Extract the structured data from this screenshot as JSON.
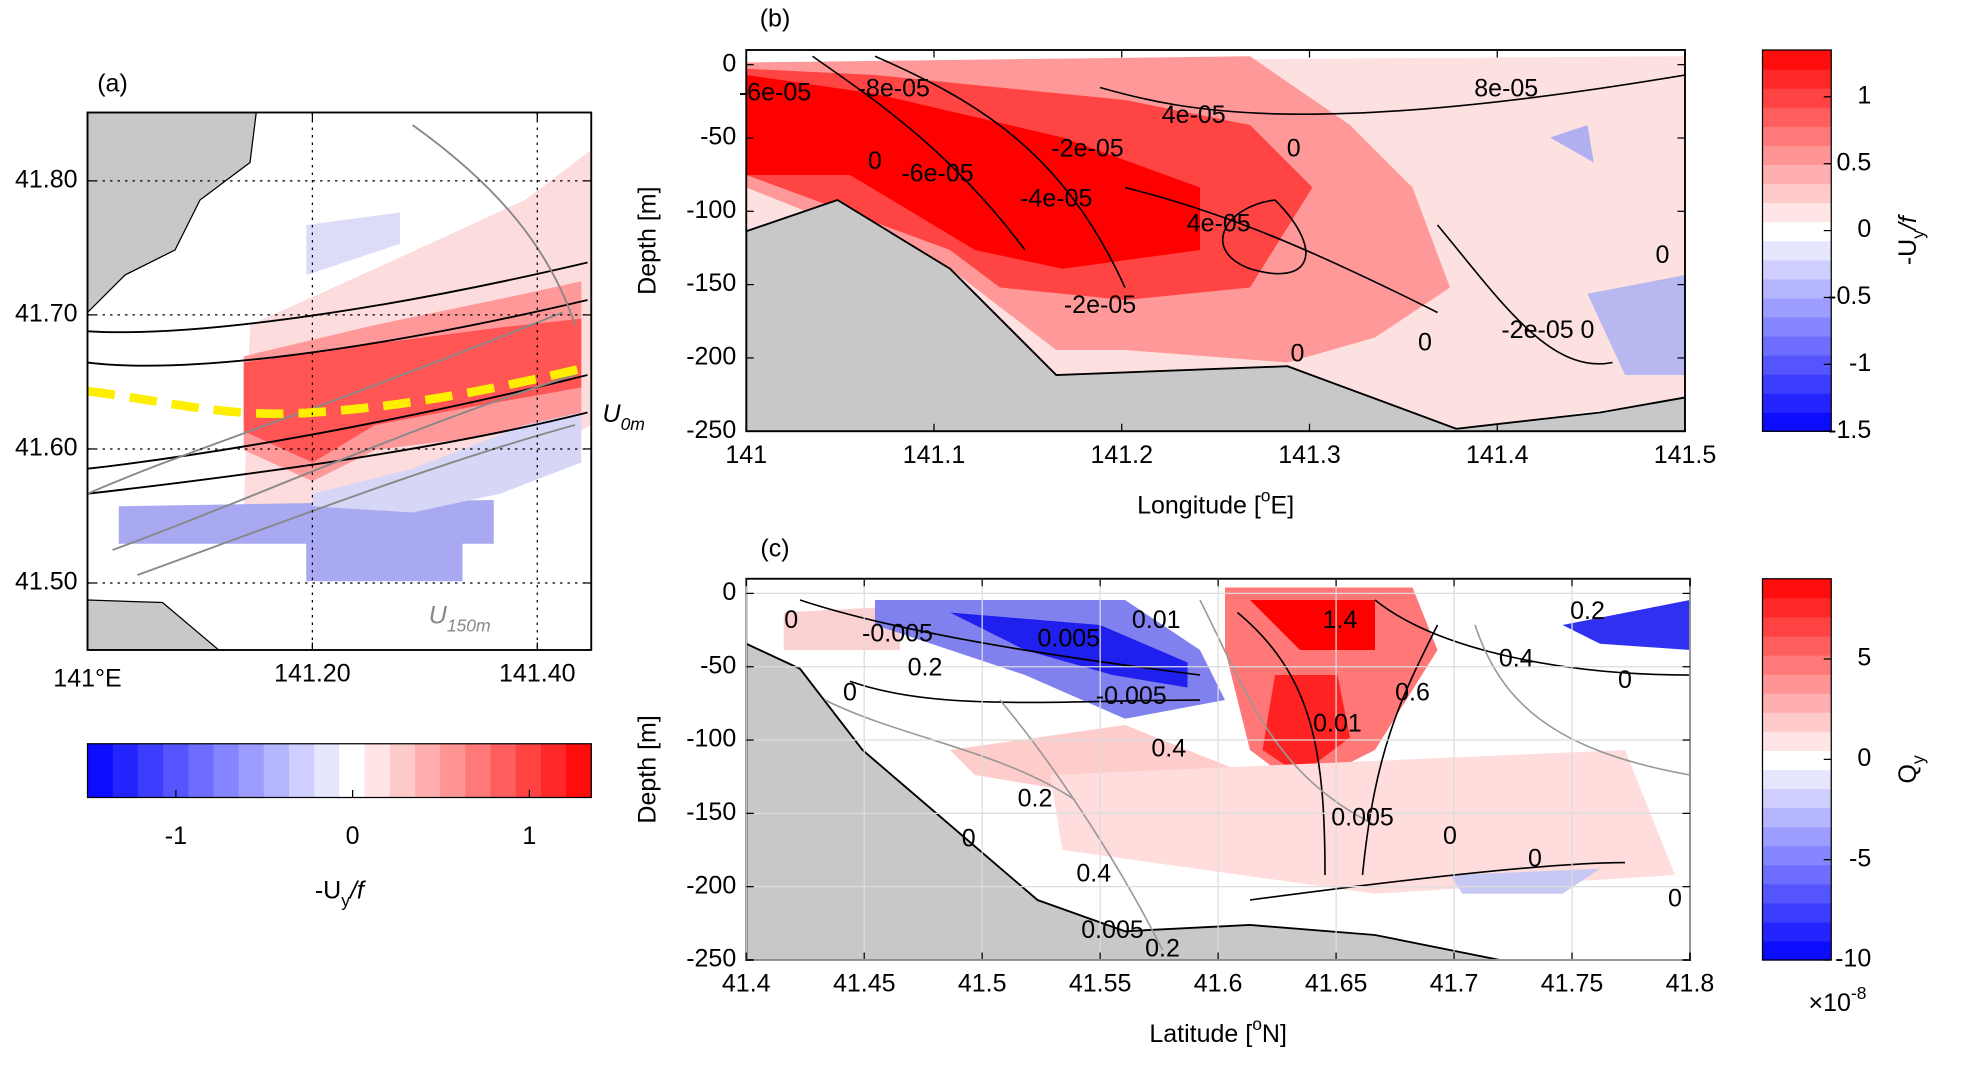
{
  "chart_data": [
    {
      "type": "map",
      "label": "(a)",
      "xlim": [
        141,
        141.448
      ],
      "ylim": [
        41.45,
        41.851
      ],
      "xticks": [
        {
          "value": 141,
          "label": "141°E"
        },
        {
          "value": 141.2,
          "label": "141.20"
        },
        {
          "value": 141.4,
          "label": "141.40"
        }
      ],
      "yticks": [
        {
          "value": 41.5,
          "label": "41.50"
        },
        {
          "value": 41.6,
          "label": "41.60"
        },
        {
          "value": 41.7,
          "label": "41.70"
        },
        {
          "value": 41.8,
          "label": "41.80"
        }
      ],
      "grid": true,
      "annotations": [
        {
          "main": "U",
          "sub": "0m"
        },
        {
          "main": "U",
          "sub": "150m"
        }
      ],
      "colorbar": {
        "orientation": "horizontal",
        "lim": [
          -1.5,
          1.35
        ],
        "ticks": [
          -1,
          0,
          1
        ],
        "label": {
          "pre": "-U",
          "sub": "y",
          "post": "/f"
        }
      }
    },
    {
      "type": "section",
      "label": "(b)",
      "xlim": [
        141,
        141.5
      ],
      "ylim": [
        -250,
        10
      ],
      "xticks": [
        141,
        141.1,
        141.2,
        141.3,
        141.4,
        141.5
      ],
      "yticks": [
        0,
        -50,
        -100,
        -150,
        -200,
        -250
      ],
      "grid": false,
      "xlabel": {
        "pre": "Longitude [",
        "sup": "o",
        "post": "E]"
      },
      "ylabel": "Depth [m]",
      "contour_labels": [
        "-6e-05",
        "-8e-05",
        "4e-05",
        "8e-05",
        "-2e-05",
        "0",
        "0",
        "-6e-05",
        "-4e-05",
        "4e-05",
        "-2e-05",
        "0",
        "0",
        "-2e-05",
        "0",
        "0"
      ],
      "colorbar": {
        "orientation": "vertical",
        "lim": [
          -1.5,
          1.35
        ],
        "ticks": [
          1,
          0.5,
          0,
          -0.5,
          -1,
          -1.5
        ],
        "label": {
          "pre": "-U",
          "sub": "y",
          "post": "/f"
        }
      }
    },
    {
      "type": "section",
      "label": "(c)",
      "xlim": [
        41.4,
        41.8
      ],
      "ylim": [
        -250,
        10
      ],
      "xticks": [
        41.4,
        41.45,
        41.5,
        41.55,
        41.6,
        41.65,
        41.7,
        41.75,
        41.8
      ],
      "yticks": [
        0,
        -50,
        -100,
        -150,
        -200,
        -250
      ],
      "grid": true,
      "xlabel": {
        "pre": "Latitude [",
        "sup": "o",
        "post": "N]"
      },
      "ylabel": "Depth [m]",
      "contour_labels": [
        "0",
        "-0.005",
        "0.005",
        "0.01",
        "1.4",
        "-0.005",
        "0.01",
        "0.4",
        "0.6",
        "0",
        "0.4",
        "0.2",
        "0",
        "0.005",
        "0.4",
        "0",
        "0",
        "0.005",
        "0.2",
        "0.2",
        "0",
        "0.2",
        "0"
      ],
      "colorbar": {
        "orientation": "vertical",
        "lim": [
          -10,
          9
        ],
        "ticks": [
          5,
          0,
          -5,
          -10
        ],
        "label": {
          "pre": "Q",
          "sub": "y",
          "post": ""
        },
        "multiplier": {
          "pre": "×10",
          "sup": "-8"
        }
      }
    }
  ]
}
